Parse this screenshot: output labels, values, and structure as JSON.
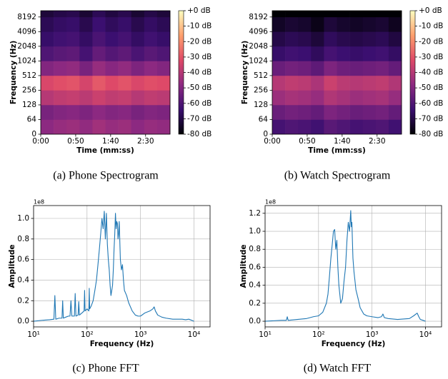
{
  "chart_data": [
    {
      "type": "spectrogram",
      "caption": "(a) Phone Spectrogram",
      "xlabel": "Time (mm:ss)",
      "ylabel": "Frequency (Hz)",
      "colormap": "magma",
      "yscale": "symlog",
      "linthresh": 64,
      "time_bins": [
        0,
        18.5,
        37,
        55.5,
        74,
        92.5,
        111,
        129.5,
        148,
        166.5,
        185
      ],
      "freq_bins": [
        0,
        64,
        128,
        256,
        512,
        1024,
        2048,
        4096,
        8192,
        11025
      ],
      "z": [
        [
          -48,
          -46,
          -45,
          -47,
          -44,
          -46,
          -45,
          -48,
          -46,
          -47
        ],
        [
          -52,
          -50,
          -49,
          -51,
          -48,
          -50,
          -49,
          -52,
          -50,
          -51
        ],
        [
          -40,
          -38,
          -37,
          -39,
          -36,
          -38,
          -37,
          -40,
          -38,
          -39
        ],
        [
          -33,
          -31,
          -30,
          -34,
          -29,
          -32,
          -30,
          -33,
          -31,
          -32
        ],
        [
          -50,
          -48,
          -47,
          -52,
          -46,
          -49,
          -47,
          -51,
          -48,
          -50
        ],
        [
          -60,
          -58,
          -57,
          -62,
          -56,
          -59,
          -57,
          -61,
          -58,
          -60
        ],
        [
          -65,
          -63,
          -62,
          -66,
          -61,
          -64,
          -62,
          -66,
          -63,
          -65
        ],
        [
          -68,
          -66,
          -65,
          -69,
          -64,
          -67,
          -65,
          -69,
          -66,
          -68
        ],
        [
          -72,
          -70,
          -69,
          -73,
          -68,
          -71,
          -69,
          -73,
          -70,
          -72
        ]
      ],
      "clim": [
        -80,
        0
      ],
      "xlim": [
        0,
        185
      ],
      "ylim": [
        0,
        11025
      ],
      "xticks": [
        {
          "value": 0,
          "label": "0:00"
        },
        {
          "value": 50,
          "label": "0:50"
        },
        {
          "value": 100,
          "label": "1:40"
        },
        {
          "value": 150,
          "label": "2:30"
        }
      ],
      "yticks": [
        0,
        64,
        128,
        256,
        512,
        1024,
        2048,
        4096,
        8192
      ],
      "colorbar_ticks": [
        {
          "value": 0,
          "label": "+0 dB"
        },
        {
          "value": -10,
          "label": "-10 dB"
        },
        {
          "value": -20,
          "label": "-20 dB"
        },
        {
          "value": -30,
          "label": "-30 dB"
        },
        {
          "value": -40,
          "label": "-40 dB"
        },
        {
          "value": -50,
          "label": "-50 dB"
        },
        {
          "value": -60,
          "label": "-60 dB"
        },
        {
          "value": -70,
          "label": "-70 dB"
        },
        {
          "value": -80,
          "label": "-80 dB"
        }
      ]
    },
    {
      "type": "spectrogram",
      "caption": "(b) Watch Spectrogram",
      "xlabel": "Time (mm:ss)",
      "ylabel": "Frequency (Hz)",
      "colormap": "magma",
      "yscale": "symlog",
      "linthresh": 64,
      "time_bins": [
        0,
        18.5,
        37,
        55.5,
        74,
        92.5,
        111,
        129.5,
        148,
        166.5,
        185
      ],
      "freq_bins": [
        0,
        64,
        128,
        256,
        512,
        1024,
        2048,
        4096,
        8192,
        11025
      ],
      "z": [
        [
          -62,
          -60,
          -61,
          -63,
          -58,
          -60,
          -62,
          -61,
          -60,
          -63
        ],
        [
          -55,
          -53,
          -54,
          -56,
          -51,
          -53,
          -55,
          -54,
          -53,
          -56
        ],
        [
          -45,
          -43,
          -44,
          -46,
          -41,
          -43,
          -45,
          -44,
          -43,
          -46
        ],
        [
          -40,
          -38,
          -39,
          -42,
          -36,
          -39,
          -40,
          -39,
          -38,
          -41
        ],
        [
          -55,
          -53,
          -54,
          -57,
          -51,
          -54,
          -55,
          -54,
          -53,
          -56
        ],
        [
          -65,
          -63,
          -64,
          -67,
          -62,
          -64,
          -65,
          -64,
          -63,
          -66
        ],
        [
          -70,
          -68,
          -69,
          -72,
          -67,
          -69,
          -70,
          -69,
          -68,
          -71
        ],
        [
          -75,
          -73,
          -74,
          -77,
          -72,
          -74,
          -75,
          -74,
          -73,
          -76
        ],
        [
          -80,
          -80,
          -80,
          -80,
          -80,
          -80,
          -80,
          -80,
          -80,
          -80
        ]
      ],
      "clim": [
        -80,
        0
      ],
      "xlim": [
        0,
        185
      ],
      "ylim": [
        0,
        11025
      ],
      "xticks": [
        {
          "value": 0,
          "label": "0:00"
        },
        {
          "value": 50,
          "label": "0:50"
        },
        {
          "value": 100,
          "label": "1:40"
        },
        {
          "value": 150,
          "label": "2:30"
        }
      ],
      "yticks": [
        0,
        64,
        128,
        256,
        512,
        1024,
        2048,
        4096,
        8192
      ],
      "colorbar_ticks": [
        {
          "value": 0,
          "label": "+0 dB"
        },
        {
          "value": -10,
          "label": "-10 dB"
        },
        {
          "value": -20,
          "label": "-20 dB"
        },
        {
          "value": -30,
          "label": "-30 dB"
        },
        {
          "value": -40,
          "label": "-40 dB"
        },
        {
          "value": -50,
          "label": "-50 dB"
        },
        {
          "value": -60,
          "label": "-60 dB"
        },
        {
          "value": -70,
          "label": "-70 dB"
        },
        {
          "value": -80,
          "label": "-80 dB"
        }
      ]
    },
    {
      "type": "line",
      "caption": "(c) Phone FFT",
      "xlabel": "Frequency (Hz)",
      "ylabel": "Amplitude",
      "offset_label": "1e8",
      "xscale": "log",
      "grid": true,
      "color": "#1f77b4",
      "x": [
        10,
        15,
        20,
        24,
        25,
        26,
        30,
        34,
        35,
        36,
        40,
        45,
        48,
        50,
        52,
        58,
        60,
        62,
        68,
        70,
        72,
        80,
        88,
        90,
        92,
        100,
        108,
        110,
        112,
        120,
        130,
        140,
        150,
        160,
        170,
        180,
        190,
        200,
        210,
        220,
        230,
        240,
        250,
        260,
        270,
        280,
        290,
        300,
        310,
        320,
        330,
        340,
        350,
        360,
        370,
        380,
        390,
        400,
        420,
        440,
        460,
        480,
        500,
        550,
        600,
        700,
        800,
        900,
        1000,
        1200,
        1500,
        1700,
        1800,
        1900,
        2100,
        2500,
        3000,
        4000,
        5000,
        6000,
        7000,
        8000,
        9000,
        10000
      ],
      "values": [
        0.0,
        0.01,
        0.015,
        0.02,
        0.25,
        0.02,
        0.03,
        0.03,
        0.2,
        0.03,
        0.04,
        0.05,
        0.05,
        0.2,
        0.05,
        0.05,
        0.27,
        0.05,
        0.06,
        0.19,
        0.06,
        0.08,
        0.1,
        0.3,
        0.1,
        0.12,
        0.1,
        0.32,
        0.12,
        0.15,
        0.2,
        0.3,
        0.4,
        0.55,
        0.7,
        0.85,
        1.0,
        0.9,
        1.07,
        0.8,
        1.05,
        0.75,
        0.6,
        0.5,
        0.35,
        0.25,
        0.3,
        0.35,
        0.5,
        0.7,
        0.85,
        1.05,
        0.9,
        0.97,
        0.95,
        0.8,
        0.85,
        0.97,
        0.6,
        0.5,
        0.55,
        0.4,
        0.3,
        0.25,
        0.18,
        0.1,
        0.06,
        0.05,
        0.05,
        0.08,
        0.1,
        0.12,
        0.14,
        0.1,
        0.06,
        0.04,
        0.03,
        0.02,
        0.02,
        0.02,
        0.015,
        0.02,
        0.01,
        0.0
      ],
      "xlim": [
        10,
        20000
      ],
      "ylim": [
        -0.055,
        1.125
      ],
      "xticks": [
        {
          "value": 10,
          "label": "10¹"
        },
        {
          "value": 100,
          "label": "10²"
        },
        {
          "value": 1000,
          "label": "10³"
        },
        {
          "value": 10000,
          "label": "10⁴"
        }
      ],
      "yticks": [
        {
          "value": 0,
          "label": "0.0"
        },
        {
          "value": 0.2,
          "label": "0.2"
        },
        {
          "value": 0.4,
          "label": "0.4"
        },
        {
          "value": 0.6,
          "label": "0.6"
        },
        {
          "value": 0.8,
          "label": "0.8"
        },
        {
          "value": 1,
          "label": "1.0"
        }
      ]
    },
    {
      "type": "line",
      "caption": "(d) Watch FFT",
      "xlabel": "Frequency (Hz)",
      "ylabel": "Amplitude",
      "offset_label": "1e8",
      "xscale": "log",
      "grid": true,
      "color": "#1f77b4",
      "x": [
        10,
        20,
        25,
        26,
        27,
        40,
        60,
        80,
        100,
        120,
        140,
        150,
        160,
        170,
        180,
        190,
        200,
        210,
        220,
        230,
        240,
        250,
        260,
        280,
        300,
        320,
        340,
        360,
        380,
        400,
        410,
        420,
        440,
        460,
        480,
        500,
        550,
        600,
        700,
        800,
        1000,
        1300,
        1500,
        1600,
        1700,
        2000,
        3000,
        5000,
        6000,
        7000,
        7500,
        8000,
        9000,
        10000
      ],
      "values": [
        0.0,
        0.01,
        0.01,
        0.05,
        0.01,
        0.02,
        0.03,
        0.05,
        0.06,
        0.1,
        0.2,
        0.3,
        0.5,
        0.7,
        0.85,
        1.0,
        1.02,
        0.8,
        0.9,
        0.6,
        0.4,
        0.3,
        0.2,
        0.25,
        0.45,
        0.6,
        0.9,
        1.1,
        1.0,
        1.23,
        1.05,
        1.1,
        0.7,
        0.55,
        0.45,
        0.35,
        0.25,
        0.15,
        0.08,
        0.06,
        0.05,
        0.04,
        0.05,
        0.08,
        0.04,
        0.03,
        0.02,
        0.03,
        0.06,
        0.09,
        0.05,
        0.02,
        0.01,
        0.0
      ],
      "xlim": [
        10,
        20000
      ],
      "ylim": [
        -0.063,
        1.286
      ],
      "xticks": [
        {
          "value": 10,
          "label": "10¹"
        },
        {
          "value": 100,
          "label": "10²"
        },
        {
          "value": 1000,
          "label": "10³"
        },
        {
          "value": 10000,
          "label": "10⁴"
        }
      ],
      "yticks": [
        {
          "value": 0,
          "label": "0.0"
        },
        {
          "value": 0.2,
          "label": "0.2"
        },
        {
          "value": 0.4,
          "label": "0.4"
        },
        {
          "value": 0.6,
          "label": "0.6"
        },
        {
          "value": 0.8,
          "label": "0.8"
        },
        {
          "value": 1,
          "label": "1.0"
        },
        {
          "value": 1.2,
          "label": "1.2"
        }
      ]
    }
  ]
}
